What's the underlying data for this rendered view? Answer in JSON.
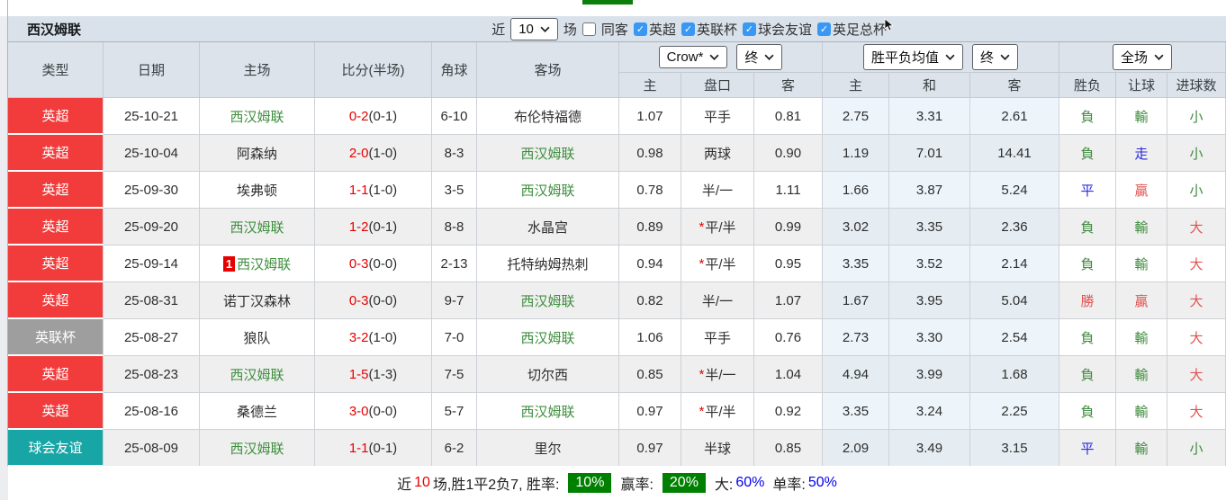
{
  "title": "西汉姆联",
  "filters": {
    "near_label": "近",
    "games_label": "场",
    "same_away_label": "同客",
    "same_away_checked": false,
    "leagues": [
      {
        "label": "英超",
        "checked": true
      },
      {
        "label": "英联杯",
        "checked": true
      },
      {
        "label": "球会友谊",
        "checked": true
      },
      {
        "label": "英足总杯",
        "checked": true
      }
    ]
  },
  "selects": {
    "recent": "10",
    "odds_company": "Crow*",
    "odds_stage": "终",
    "avg_type": "胜平负均值",
    "avg_stage": "终",
    "scope": "全场"
  },
  "columns": {
    "main": [
      "类型",
      "日期",
      "主场",
      "比分(半场)",
      "角球",
      "客场"
    ],
    "sub": [
      "主",
      "盘口",
      "客",
      "主",
      "和",
      "客",
      "胜负",
      "让球",
      "进球数"
    ]
  },
  "colors": {
    "league_premier": "#f23c3c",
    "league_cup": "#9e9e9e",
    "league_friendly": "#17a5a5",
    "team_self_green": "#3f8f3f",
    "score_red": "#e60000",
    "result_green": "#3d8b3d",
    "result_red": "#e25252",
    "result_blue": "#2929dd",
    "badge_green": "#008000",
    "rate_blue": "#0000ee",
    "header_bg": "#dce3ea",
    "stripe": "#efefef",
    "avg_tint": "#edf5fb",
    "checkbox_blue": "#3898f3",
    "top_indicator_green": "#0a7d0a"
  },
  "rows": [
    {
      "league": "英超",
      "lc": "league_premier",
      "date": "25-10-21",
      "home": "西汉姆联",
      "home_self": true,
      "score": "0-2",
      "half": "(0-1)",
      "corner": "6-10",
      "away": "布伦特福德",
      "away_self": false,
      "crow": [
        "1.07",
        "平手",
        "0.81"
      ],
      "star": false,
      "avg": [
        "2.75",
        "3.31",
        "2.61"
      ],
      "res": [
        [
          "負",
          "g"
        ],
        [
          "輸",
          "g"
        ],
        [
          "小",
          "g"
        ]
      ]
    },
    {
      "league": "英超",
      "lc": "league_premier",
      "date": "25-10-04",
      "home": "阿森纳",
      "home_self": false,
      "score": "2-0",
      "half": "(1-0)",
      "corner": "8-3",
      "away": "西汉姆联",
      "away_self": true,
      "crow": [
        "0.98",
        "两球",
        "0.90"
      ],
      "star": false,
      "avg": [
        "1.19",
        "7.01",
        "14.41"
      ],
      "res": [
        [
          "負",
          "g"
        ],
        [
          "走",
          "b"
        ],
        [
          "小",
          "g"
        ]
      ]
    },
    {
      "league": "英超",
      "lc": "league_premier",
      "date": "25-09-30",
      "home": "埃弗顿",
      "home_self": false,
      "score": "1-1",
      "half": "(1-0)",
      "corner": "3-5",
      "away": "西汉姆联",
      "away_self": true,
      "crow": [
        "0.78",
        "半/一",
        "1.11"
      ],
      "star": false,
      "avg": [
        "1.66",
        "3.87",
        "5.24"
      ],
      "res": [
        [
          "平",
          "b"
        ],
        [
          "贏",
          "r"
        ],
        [
          "小",
          "g"
        ]
      ]
    },
    {
      "league": "英超",
      "lc": "league_premier",
      "date": "25-09-20",
      "home": "西汉姆联",
      "home_self": true,
      "score": "1-2",
      "half": "(0-1)",
      "corner": "8-8",
      "away": "水晶宫",
      "away_self": false,
      "crow": [
        "0.89",
        "平/半",
        "0.99"
      ],
      "star": true,
      "avg": [
        "3.02",
        "3.35",
        "2.36"
      ],
      "res": [
        [
          "負",
          "g"
        ],
        [
          "輸",
          "g"
        ],
        [
          "大",
          "r"
        ]
      ]
    },
    {
      "league": "英超",
      "lc": "league_premier",
      "date": "25-09-14",
      "home": "西汉姆联",
      "home_self": true,
      "home_badge": "1",
      "score": "0-3",
      "half": "(0-0)",
      "corner": "2-13",
      "away": "托特纳姆热刺",
      "away_self": false,
      "crow": [
        "0.94",
        "平/半",
        "0.95"
      ],
      "star": true,
      "avg": [
        "3.35",
        "3.52",
        "2.14"
      ],
      "res": [
        [
          "負",
          "g"
        ],
        [
          "輸",
          "g"
        ],
        [
          "大",
          "r"
        ]
      ]
    },
    {
      "league": "英超",
      "lc": "league_premier",
      "date": "25-08-31",
      "home": "诺丁汉森林",
      "home_self": false,
      "score": "0-3",
      "half": "(0-0)",
      "corner": "9-7",
      "away": "西汉姆联",
      "away_self": true,
      "crow": [
        "0.82",
        "半/一",
        "1.07"
      ],
      "star": false,
      "avg": [
        "1.67",
        "3.95",
        "5.04"
      ],
      "res": [
        [
          "勝",
          "r"
        ],
        [
          "贏",
          "r"
        ],
        [
          "大",
          "r"
        ]
      ]
    },
    {
      "league": "英联杯",
      "lc": "league_cup",
      "date": "25-08-27",
      "home": "狼队",
      "home_self": false,
      "score": "3-2",
      "half": "(1-0)",
      "corner": "7-0",
      "away": "西汉姆联",
      "away_self": true,
      "crow": [
        "1.06",
        "平手",
        "0.76"
      ],
      "star": false,
      "avg": [
        "2.73",
        "3.30",
        "2.54"
      ],
      "res": [
        [
          "負",
          "g"
        ],
        [
          "輸",
          "g"
        ],
        [
          "大",
          "r"
        ]
      ]
    },
    {
      "league": "英超",
      "lc": "league_premier",
      "date": "25-08-23",
      "home": "西汉姆联",
      "home_self": true,
      "score": "1-5",
      "half": "(1-3)",
      "corner": "7-5",
      "away": "切尔西",
      "away_self": false,
      "crow": [
        "0.85",
        "半/一",
        "1.04"
      ],
      "star": true,
      "avg": [
        "4.94",
        "3.99",
        "1.68"
      ],
      "res": [
        [
          "負",
          "g"
        ],
        [
          "輸",
          "g"
        ],
        [
          "大",
          "r"
        ]
      ]
    },
    {
      "league": "英超",
      "lc": "league_premier",
      "date": "25-08-16",
      "home": "桑德兰",
      "home_self": false,
      "score": "3-0",
      "half": "(0-0)",
      "corner": "5-7",
      "away": "西汉姆联",
      "away_self": true,
      "crow": [
        "0.97",
        "平/半",
        "0.92"
      ],
      "star": true,
      "avg": [
        "3.35",
        "3.24",
        "2.25"
      ],
      "res": [
        [
          "負",
          "g"
        ],
        [
          "輸",
          "g"
        ],
        [
          "大",
          "r"
        ]
      ]
    },
    {
      "league": "球会友谊",
      "lc": "league_friendly",
      "date": "25-08-09",
      "home": "西汉姆联",
      "home_self": true,
      "score": "1-1",
      "half": "(0-1)",
      "corner": "6-2",
      "away": "里尔",
      "away_self": false,
      "crow": [
        "0.97",
        "半球",
        "0.85"
      ],
      "star": false,
      "avg": [
        "2.09",
        "3.49",
        "3.15"
      ],
      "res": [
        [
          "平",
          "b"
        ],
        [
          "輸",
          "g"
        ],
        [
          "小",
          "g"
        ]
      ]
    }
  ],
  "summary": {
    "near_label": "近",
    "near_count": "10",
    "record_text": "场,胜1平2负7, 胜率:",
    "win_rate": "10%",
    "odds_label": "赢率:",
    "odds_rate": "20%",
    "big_label": "大:",
    "big_rate": "60%",
    "single_label": "单率:",
    "single_rate": "50%"
  }
}
